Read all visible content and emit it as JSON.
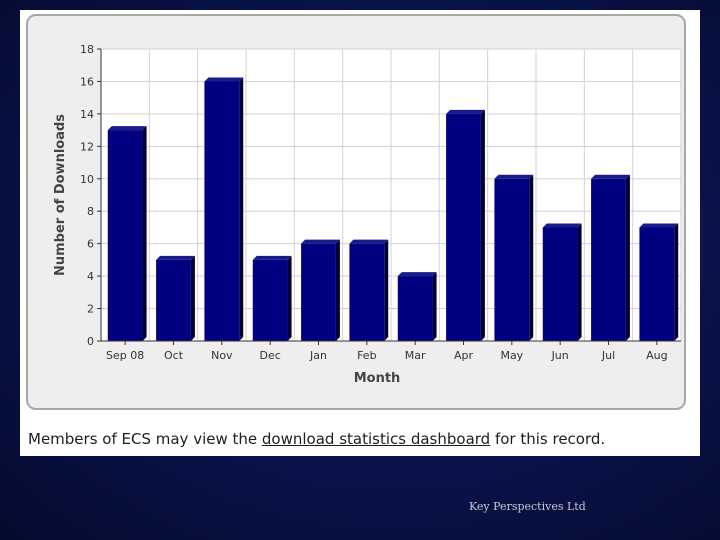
{
  "chart_data": {
    "type": "bar",
    "categories": [
      "Sep 08",
      "Oct",
      "Nov",
      "Dec",
      "Jan",
      "Feb",
      "Mar",
      "Apr",
      "May",
      "Jun",
      "Jul",
      "Aug"
    ],
    "values": [
      13,
      5,
      16,
      5,
      6,
      6,
      4,
      14,
      10,
      7,
      10,
      7
    ],
    "xlabel": "Month",
    "ylabel": "Number of Downloads",
    "ylim": [
      0,
      18
    ],
    "yticks": [
      0,
      2,
      4,
      6,
      8,
      10,
      12,
      14,
      16,
      18
    ],
    "grid": true,
    "bar_color": "#000080"
  },
  "caption": {
    "before": "Members of ECS may view the ",
    "link": "download statistics dashboard",
    "after": " for this record."
  },
  "footer": "Key Perspectives Ltd"
}
